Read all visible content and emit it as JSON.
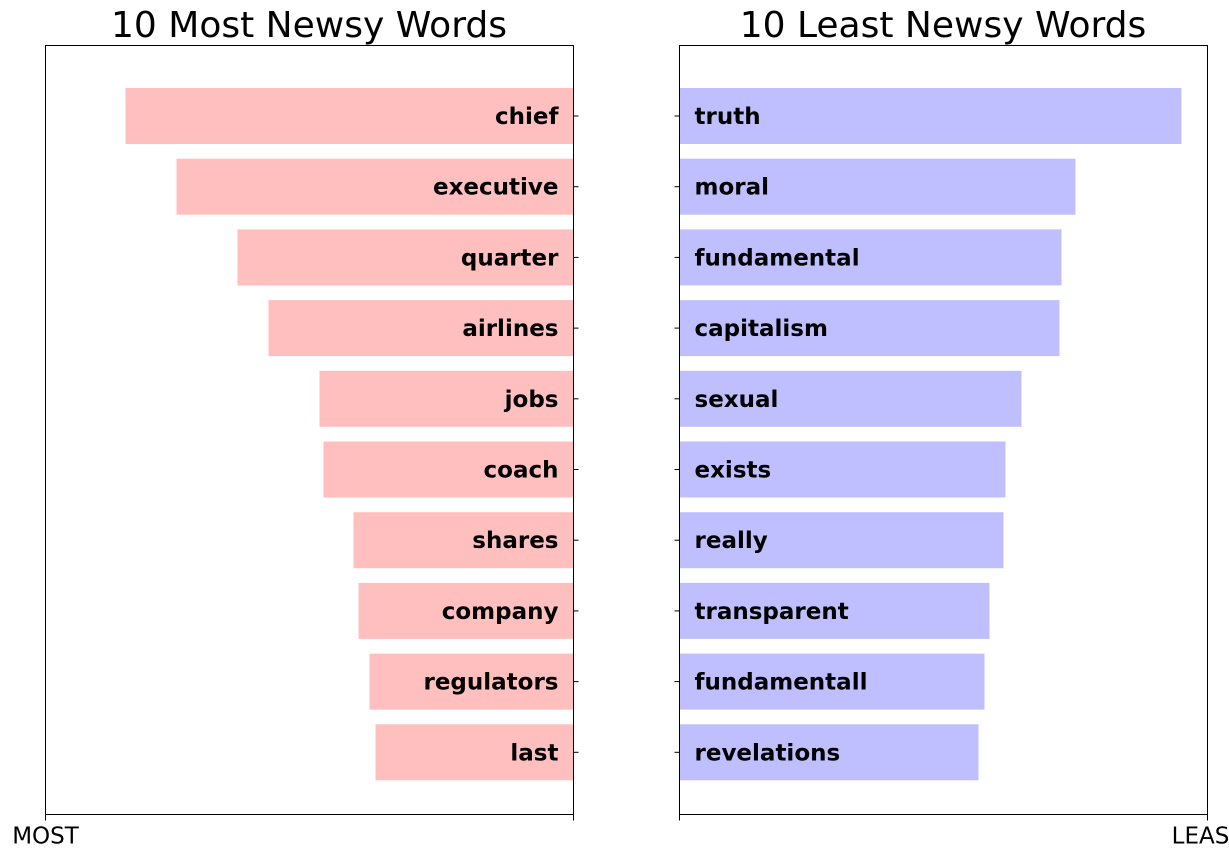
{
  "chart_data": [
    {
      "type": "bar",
      "orientation": "horizontal",
      "title": "10 Most Newsy Words",
      "categories": [
        "chief",
        "executive",
        "quarter",
        "airlines",
        "jobs",
        "coach",
        "shares",
        "company",
        "regulators",
        "last"
      ],
      "values": [
        448,
        397,
        336,
        305,
        254,
        250,
        220,
        215,
        204,
        198
      ],
      "xlim": [
        0,
        528
      ],
      "x_direction": "right-to-left",
      "xtick_labels": [
        "MOST",
        ""
      ],
      "color": "#ffbfbf",
      "label_position": "inside-end"
    },
    {
      "type": "bar",
      "orientation": "horizontal",
      "title": "10 Least Newsy Words",
      "categories": [
        "truth",
        "moral",
        "fundamental",
        "capitalism",
        "sexual",
        "exists",
        "really",
        "transparent",
        "fundamentall",
        "revelations"
      ],
      "values": [
        502,
        396,
        382,
        380,
        342,
        326,
        324,
        310,
        305,
        299
      ],
      "xlim": [
        0,
        528
      ],
      "x_direction": "left-to-right",
      "xtick_labels": [
        "",
        "LEAST"
      ],
      "color": "#bfbfff",
      "label_position": "inside-start"
    }
  ]
}
